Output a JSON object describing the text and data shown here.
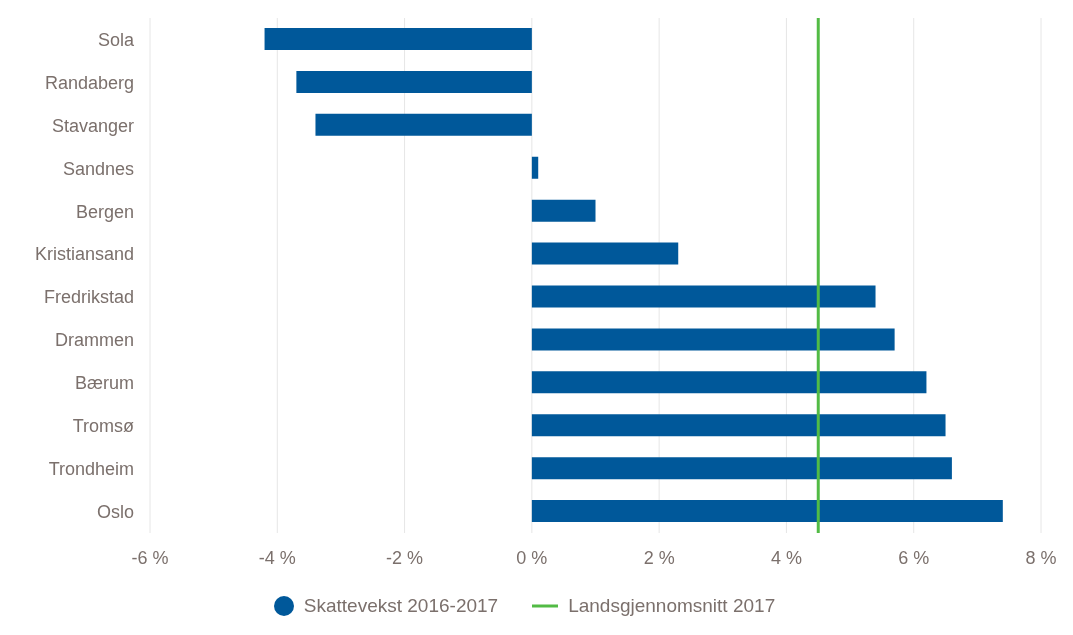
{
  "chart_data": {
    "type": "bar",
    "orientation": "horizontal",
    "categories": [
      "Sola",
      "Randaberg",
      "Stavanger",
      "Sandnes",
      "Bergen",
      "Kristiansand",
      "Fredrikstad",
      "Drammen",
      "Bærum",
      "Tromsø",
      "Trondheim",
      "Oslo"
    ],
    "series": [
      {
        "name": "Skattevekst 2016-2017",
        "color": "#00589a",
        "values": [
          -4.2,
          -3.7,
          -3.4,
          0.1,
          1.0,
          2.3,
          5.4,
          5.7,
          6.2,
          6.5,
          6.6,
          7.4
        ]
      }
    ],
    "xlim": [
      -6,
      8
    ],
    "xticks": [
      {
        "value": -6,
        "label": "-6 %"
      },
      {
        "value": -4,
        "label": "-4 %"
      },
      {
        "value": -2,
        "label": "-2 %"
      },
      {
        "value": 0,
        "label": "0 %"
      },
      {
        "value": 2,
        "label": "2 %"
      },
      {
        "value": 4,
        "label": "4 %"
      },
      {
        "value": 6,
        "label": "6 %"
      },
      {
        "value": 8,
        "label": "8 %"
      }
    ],
    "ref_lines": [
      {
        "axis": "x",
        "value": 4.5,
        "label": "Landsgjennomsnitt 2017",
        "color": "#52bb45"
      }
    ],
    "grid": "x",
    "legend": "bottom"
  }
}
